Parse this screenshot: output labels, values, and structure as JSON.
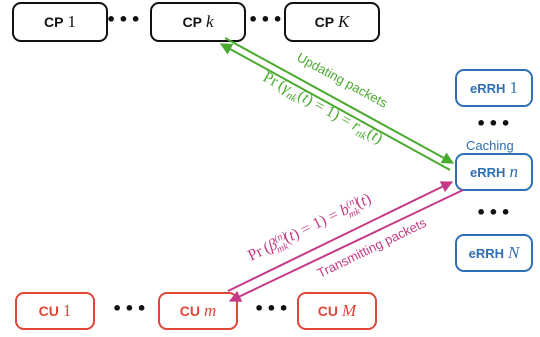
{
  "content_providers": [
    {
      "prefix": "CP",
      "index": "1"
    },
    {
      "prefix": "CP",
      "index": "k"
    },
    {
      "prefix": "CP",
      "index": "K"
    }
  ],
  "rrhs": [
    {
      "prefix": "eRRH",
      "index": "1"
    },
    {
      "prefix": "eRRH",
      "index": "n"
    },
    {
      "prefix": "eRRH",
      "index": "N"
    }
  ],
  "users": [
    {
      "prefix": "CU",
      "index": "1"
    },
    {
      "prefix": "CU",
      "index": "m"
    },
    {
      "prefix": "CU",
      "index": "M"
    }
  ],
  "ellipsis": "•••",
  "caching_label": "Caching",
  "upper_link": {
    "label": "Updating packets",
    "formula": "Pr(γnk(t) = 1) = rnk(t)",
    "color": "#4aaa2f"
  },
  "lower_link": {
    "label": "Transmitting packets",
    "formula": "Pr(βmk(n)(t) = 1) = bmk(n)(t)",
    "color": "#c43a86"
  },
  "colors": {
    "cp": "#111111",
    "rrh": "#2f6fb3",
    "cu": "#e0473a"
  }
}
